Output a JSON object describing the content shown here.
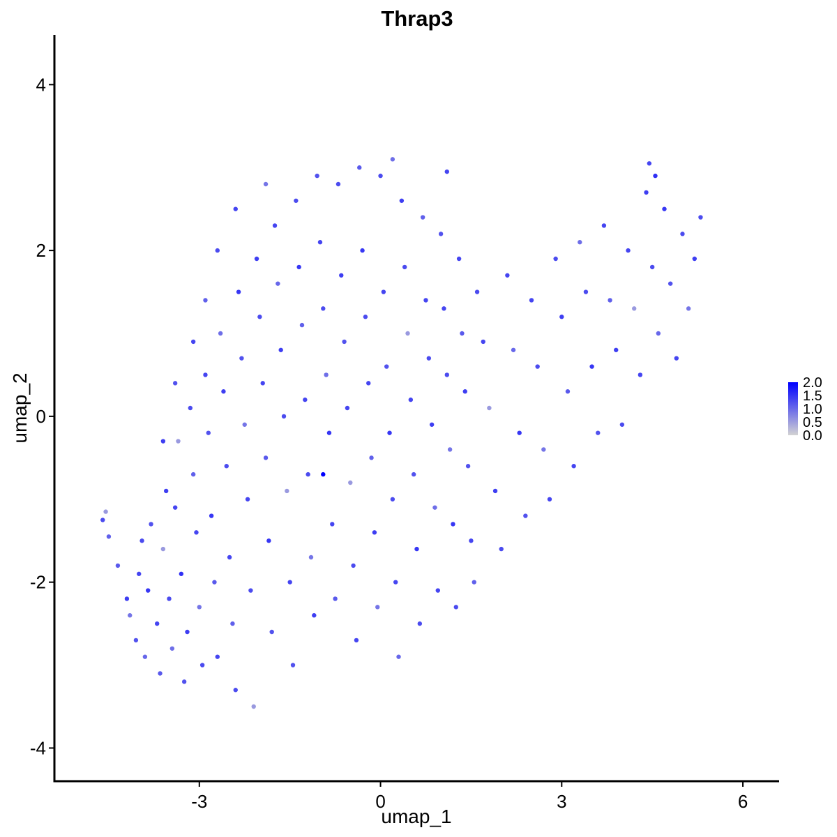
{
  "chart_data": {
    "type": "scatter",
    "title": "Thrap3",
    "xlabel": "umap_1",
    "ylabel": "umap_2",
    "xlim": [
      -5.4,
      6.6
    ],
    "ylim": [
      -4.4,
      4.6
    ],
    "xticks": [
      -3,
      0,
      3,
      6
    ],
    "yticks": [
      -4,
      -2,
      0,
      2,
      4
    ],
    "xtick_labels": [
      "-3",
      "0",
      "3",
      "6"
    ],
    "ytick_labels": [
      "-4",
      "-2",
      "0",
      "2",
      "4"
    ],
    "grid": false,
    "color_scale": {
      "low_color": "#d3d3d3",
      "high_color": "#0000ff",
      "min": 0.0,
      "max": 2.0,
      "legend_ticks": [
        2.0,
        1.5,
        1.0,
        0.5,
        0.0
      ],
      "legend_labels": [
        "2.0",
        "1.5",
        "1.0",
        "0.5",
        "0.0"
      ],
      "legend_position": "right"
    },
    "points": [
      [
        -4.6,
        -1.25,
        0.9
      ],
      [
        -4.55,
        -1.15,
        0.2
      ],
      [
        -4.5,
        -1.45,
        0.6
      ],
      [
        -4.35,
        -1.8,
        0.7
      ],
      [
        -4.2,
        -2.2,
        1.1
      ],
      [
        -4.15,
        -2.4,
        0.3
      ],
      [
        -4.05,
        -2.7,
        0.8
      ],
      [
        -4.0,
        -1.9,
        1.0
      ],
      [
        -3.95,
        -1.5,
        0.9
      ],
      [
        -3.9,
        -2.9,
        0.5
      ],
      [
        -3.85,
        -2.1,
        1.2
      ],
      [
        -3.8,
        -1.3,
        0.8
      ],
      [
        -3.7,
        -2.5,
        1.0
      ],
      [
        -3.65,
        -3.1,
        0.7
      ],
      [
        -3.6,
        -1.6,
        0.2
      ],
      [
        -3.55,
        -0.9,
        1.1
      ],
      [
        -3.5,
        -2.2,
        0.9
      ],
      [
        -3.45,
        -2.8,
        0.4
      ],
      [
        -3.4,
        -1.1,
        1.0
      ],
      [
        -3.35,
        -0.3,
        0.2
      ],
      [
        -3.3,
        -1.9,
        1.3
      ],
      [
        -3.25,
        -3.2,
        0.8
      ],
      [
        -3.2,
        -2.6,
        1.1
      ],
      [
        -3.15,
        0.1,
        0.9
      ],
      [
        -3.1,
        -0.7,
        0.6
      ],
      [
        -3.05,
        -1.4,
        1.0
      ],
      [
        -3.0,
        -2.3,
        0.3
      ],
      [
        -2.95,
        -3.0,
        0.9
      ],
      [
        -2.9,
        0.5,
        1.0
      ],
      [
        -2.85,
        -0.2,
        0.8
      ],
      [
        -2.8,
        -1.2,
        1.2
      ],
      [
        -2.75,
        -2.0,
        0.7
      ],
      [
        -2.7,
        -2.9,
        1.0
      ],
      [
        -2.65,
        1.0,
        0.4
      ],
      [
        -2.6,
        0.3,
        1.1
      ],
      [
        -2.55,
        -0.6,
        0.9
      ],
      [
        -2.5,
        -1.7,
        1.0
      ],
      [
        -2.45,
        -2.5,
        0.6
      ],
      [
        -2.4,
        -3.3,
        0.9
      ],
      [
        -2.35,
        1.5,
        1.2
      ],
      [
        -2.3,
        0.7,
        0.8
      ],
      [
        -2.25,
        -0.1,
        0.3
      ],
      [
        -2.2,
        -1.0,
        1.0
      ],
      [
        -2.15,
        -2.1,
        0.9
      ],
      [
        -2.1,
        -3.5,
        0.2
      ],
      [
        -2.05,
        1.9,
        1.1
      ],
      [
        -2.0,
        1.2,
        0.9
      ],
      [
        -1.95,
        0.4,
        1.0
      ],
      [
        -1.9,
        -0.5,
        0.7
      ],
      [
        -1.85,
        -1.5,
        1.2
      ],
      [
        -1.8,
        -2.6,
        0.8
      ],
      [
        -1.75,
        2.3,
        1.0
      ],
      [
        -1.7,
        1.6,
        0.5
      ],
      [
        -1.65,
        0.8,
        1.1
      ],
      [
        -1.6,
        0.0,
        0.9
      ],
      [
        -1.55,
        -0.9,
        0.2
      ],
      [
        -1.5,
        -2.0,
        1.0
      ],
      [
        -1.45,
        -3.0,
        0.8
      ],
      [
        -1.4,
        2.6,
        0.9
      ],
      [
        -1.35,
        1.8,
        1.2
      ],
      [
        -1.3,
        1.1,
        0.6
      ],
      [
        -1.25,
        0.2,
        1.0
      ],
      [
        -1.2,
        -0.7,
        0.9
      ],
      [
        -1.15,
        -1.7,
        0.3
      ],
      [
        -1.1,
        -2.4,
        1.1
      ],
      [
        -1.05,
        2.9,
        0.8
      ],
      [
        -1.0,
        2.1,
        1.0
      ],
      [
        -0.95,
        1.3,
        0.9
      ],
      [
        -0.9,
        0.5,
        0.4
      ],
      [
        -0.85,
        -0.2,
        1.2
      ],
      [
        -0.8,
        -1.3,
        1.0
      ],
      [
        -0.75,
        -2.2,
        0.7
      ],
      [
        -0.7,
        2.8,
        0.9
      ],
      [
        -0.65,
        1.7,
        1.1
      ],
      [
        -0.6,
        0.9,
        0.8
      ],
      [
        -0.55,
        0.1,
        1.0
      ],
      [
        -0.5,
        -0.8,
        0.2
      ],
      [
        -0.45,
        -1.8,
        0.9
      ],
      [
        -0.4,
        -2.7,
        1.0
      ],
      [
        -0.35,
        3.0,
        0.7
      ],
      [
        -0.3,
        2.0,
        1.2
      ],
      [
        -0.25,
        1.2,
        0.9
      ],
      [
        -0.2,
        0.4,
        1.0
      ],
      [
        -0.15,
        -0.5,
        0.6
      ],
      [
        -0.1,
        -1.4,
        1.1
      ],
      [
        -0.05,
        -2.3,
        0.3
      ],
      [
        0.0,
        2.9,
        0.9
      ],
      [
        0.05,
        1.5,
        1.0
      ],
      [
        0.1,
        0.6,
        0.8
      ],
      [
        0.15,
        -0.2,
        1.2
      ],
      [
        0.2,
        -1.0,
        0.9
      ],
      [
        0.25,
        -2.0,
        1.0
      ],
      [
        0.3,
        -2.9,
        0.5
      ],
      [
        0.35,
        2.6,
        1.1
      ],
      [
        0.4,
        1.8,
        0.9
      ],
      [
        0.45,
        1.0,
        0.2
      ],
      [
        0.5,
        0.2,
        1.0
      ],
      [
        0.55,
        -0.7,
        0.8
      ],
      [
        0.6,
        -1.6,
        1.2
      ],
      [
        0.65,
        -2.5,
        0.9
      ],
      [
        0.7,
        2.4,
        0.6
      ],
      [
        0.75,
        1.4,
        1.0
      ],
      [
        0.8,
        0.7,
        0.9
      ],
      [
        0.85,
        -0.1,
        1.1
      ],
      [
        0.9,
        -1.1,
        0.4
      ],
      [
        0.95,
        -2.1,
        1.0
      ],
      [
        1.0,
        2.2,
        0.8
      ],
      [
        1.05,
        1.3,
        1.0
      ],
      [
        1.1,
        0.5,
        0.9
      ],
      [
        1.15,
        -0.4,
        0.3
      ],
      [
        1.2,
        -1.3,
        1.2
      ],
      [
        1.25,
        -2.3,
        0.9
      ],
      [
        1.3,
        1.9,
        1.0
      ],
      [
        1.35,
        1.0,
        0.7
      ],
      [
        1.4,
        0.3,
        1.1
      ],
      [
        1.45,
        -0.6,
        0.8
      ],
      [
        1.5,
        -1.5,
        1.0
      ],
      [
        1.55,
        -2.0,
        0.6
      ],
      [
        1.6,
        1.5,
        0.9
      ],
      [
        1.7,
        0.9,
        1.0
      ],
      [
        1.8,
        0.1,
        0.2
      ],
      [
        1.9,
        -0.9,
        1.1
      ],
      [
        2.0,
        -1.6,
        0.9
      ],
      [
        2.1,
        1.7,
        1.0
      ],
      [
        2.2,
        0.8,
        0.5
      ],
      [
        2.3,
        -0.2,
        1.2
      ],
      [
        2.4,
        -1.2,
        0.8
      ],
      [
        2.5,
        1.4,
        1.0
      ],
      [
        2.6,
        0.6,
        0.9
      ],
      [
        2.7,
        -0.4,
        0.3
      ],
      [
        2.8,
        -1.0,
        1.0
      ],
      [
        2.9,
        1.9,
        0.9
      ],
      [
        3.0,
        1.2,
        1.1
      ],
      [
        3.1,
        0.3,
        0.7
      ],
      [
        3.2,
        -0.6,
        1.0
      ],
      [
        3.3,
        2.1,
        0.4
      ],
      [
        3.4,
        1.5,
        0.9
      ],
      [
        3.5,
        0.6,
        1.2
      ],
      [
        3.6,
        -0.2,
        0.8
      ],
      [
        3.7,
        2.3,
        1.0
      ],
      [
        3.8,
        1.4,
        0.6
      ],
      [
        3.9,
        0.8,
        1.1
      ],
      [
        4.0,
        -0.1,
        0.9
      ],
      [
        4.1,
        2.0,
        1.0
      ],
      [
        4.2,
        1.3,
        0.2
      ],
      [
        4.3,
        0.5,
        1.0
      ],
      [
        4.4,
        2.7,
        1.1
      ],
      [
        4.5,
        1.8,
        0.9
      ],
      [
        4.6,
        1.0,
        0.5
      ],
      [
        4.7,
        2.5,
        1.2
      ],
      [
        4.8,
        1.6,
        0.8
      ],
      [
        4.9,
        0.7,
        1.0
      ],
      [
        5.0,
        2.2,
        0.9
      ],
      [
        5.1,
        1.3,
        0.3
      ],
      [
        5.2,
        1.9,
        1.1
      ],
      [
        5.3,
        2.4,
        0.9
      ],
      [
        4.55,
        2.9,
        1.3
      ],
      [
        4.45,
        3.05,
        1.0
      ],
      [
        -0.95,
        -0.7,
        2.0
      ],
      [
        -1.9,
        2.8,
        0.3
      ],
      [
        -2.4,
        2.5,
        1.0
      ],
      [
        -2.7,
        2.0,
        0.9
      ],
      [
        -2.9,
        1.4,
        0.6
      ],
      [
        -3.1,
        0.9,
        1.0
      ],
      [
        -3.4,
        0.4,
        0.8
      ],
      [
        -3.6,
        -0.3,
        1.1
      ],
      [
        0.2,
        3.1,
        0.4
      ],
      [
        1.1,
        2.95,
        1.0
      ]
    ]
  }
}
